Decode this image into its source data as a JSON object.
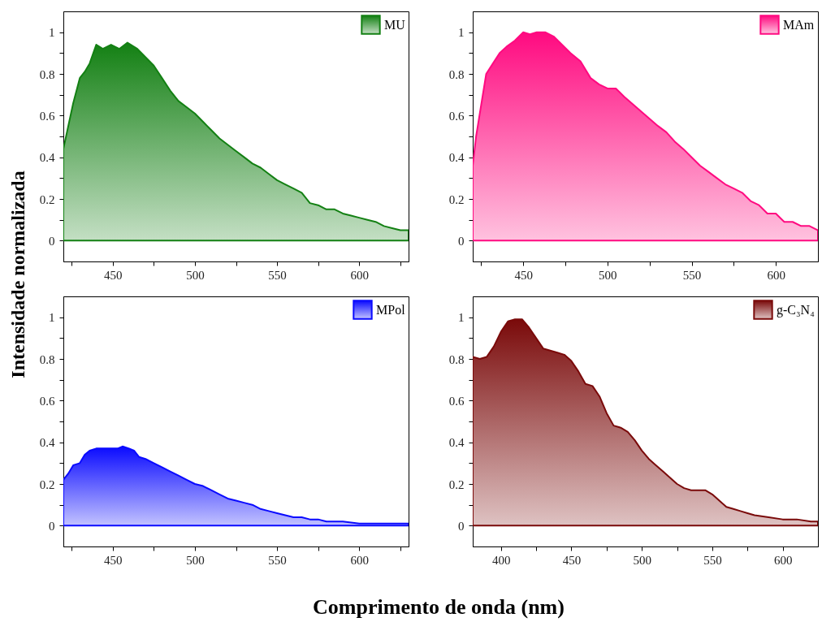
{
  "chart_data": [
    {
      "type": "area",
      "xlabel": "Comprimento de onda (nm)",
      "ylabel": "Intensidade normalizada",
      "x": [
        420,
        423,
        426,
        430,
        433,
        436,
        440,
        444,
        449,
        454,
        459,
        465,
        470,
        475,
        480,
        485,
        490,
        495,
        500,
        505,
        510,
        515,
        520,
        525,
        530,
        535,
        540,
        545,
        550,
        555,
        560,
        565,
        570,
        575,
        580,
        585,
        590,
        595,
        600,
        605,
        610,
        615,
        620,
        625,
        630
      ],
      "series": [
        {
          "name": "MU",
          "color": "#138013",
          "values": [
            0.44,
            0.55,
            0.66,
            0.78,
            0.81,
            0.85,
            0.94,
            0.92,
            0.94,
            0.92,
            0.95,
            0.92,
            0.88,
            0.84,
            0.78,
            0.72,
            0.67,
            0.64,
            0.61,
            0.57,
            0.53,
            0.49,
            0.46,
            0.43,
            0.4,
            0.37,
            0.35,
            0.32,
            0.29,
            0.27,
            0.25,
            0.23,
            0.18,
            0.17,
            0.15,
            0.15,
            0.13,
            0.12,
            0.11,
            0.1,
            0.09,
            0.07,
            0.06,
            0.05,
            0.05
          ]
        }
      ],
      "xlim": [
        420,
        630
      ],
      "xticks": [
        {
          "value": 425,
          "label": null
        },
        450,
        {
          "value": 475,
          "label": null
        },
        500,
        {
          "value": 525,
          "label": null
        },
        550,
        {
          "value": 575,
          "label": null
        },
        600,
        {
          "value": 625,
          "label": null
        }
      ],
      "ylim": [
        -0.1,
        1.1
      ],
      "yticks": [
        0,
        {
          "value": 0.1,
          "label": null
        },
        0.2,
        {
          "value": 0.3,
          "label": null
        },
        0.4,
        {
          "value": 0.5,
          "label": null
        },
        0.6,
        {
          "value": 0.7,
          "label": null
        },
        0.8,
        {
          "value": 0.9,
          "label": null
        },
        1
      ],
      "legend": "top right"
    },
    {
      "type": "area",
      "x": [
        420,
        422,
        425,
        428,
        432,
        436,
        440,
        445,
        450,
        454,
        458,
        463,
        468,
        473,
        478,
        484,
        487,
        490,
        495,
        500,
        505,
        510,
        515,
        520,
        525,
        530,
        535,
        540,
        545,
        550,
        555,
        560,
        565,
        570,
        575,
        580,
        585,
        590,
        595,
        600,
        605,
        610,
        615,
        620,
        625
      ],
      "series": [
        {
          "name": "MAm",
          "color": "#ff0a80",
          "values": [
            0.36,
            0.5,
            0.65,
            0.8,
            0.85,
            0.9,
            0.93,
            0.96,
            1.0,
            0.99,
            1.0,
            1.0,
            0.98,
            0.94,
            0.9,
            0.86,
            0.82,
            0.78,
            0.75,
            0.73,
            0.73,
            0.69,
            0.655,
            0.62,
            0.585,
            0.55,
            0.52,
            0.475,
            0.44,
            0.4,
            0.36,
            0.33,
            0.3,
            0.27,
            0.25,
            0.23,
            0.19,
            0.17,
            0.13,
            0.13,
            0.09,
            0.09,
            0.07,
            0.07,
            0.05
          ]
        }
      ],
      "xlim": [
        420,
        625
      ],
      "xticks": [
        {
          "value": 425,
          "label": null
        },
        450,
        {
          "value": 475,
          "label": null
        },
        500,
        {
          "value": 525,
          "label": null
        },
        550,
        {
          "value": 575,
          "label": null
        },
        600
      ],
      "ylim": [
        -0.1,
        1.1
      ],
      "yticks": [
        0,
        {
          "value": 0.1,
          "label": null
        },
        0.2,
        {
          "value": 0.3,
          "label": null
        },
        0.4,
        {
          "value": 0.5,
          "label": null
        },
        0.6,
        {
          "value": 0.7,
          "label": null
        },
        0.8,
        {
          "value": 0.9,
          "label": null
        },
        1
      ],
      "legend": "top right"
    },
    {
      "type": "area",
      "x": [
        420,
        423,
        426,
        430,
        433,
        436,
        440,
        445,
        450,
        453,
        456,
        460,
        463,
        466,
        470,
        475,
        480,
        485,
        490,
        495,
        500,
        505,
        510,
        515,
        520,
        525,
        530,
        535,
        540,
        545,
        550,
        555,
        560,
        565,
        570,
        575,
        580,
        590,
        600,
        610,
        620,
        630
      ],
      "series": [
        {
          "name": "MPol",
          "color": "#0a0aff",
          "values": [
            0.22,
            0.25,
            0.29,
            0.3,
            0.34,
            0.36,
            0.37,
            0.37,
            0.37,
            0.37,
            0.38,
            0.37,
            0.36,
            0.33,
            0.32,
            0.3,
            0.28,
            0.26,
            0.24,
            0.22,
            0.2,
            0.19,
            0.17,
            0.15,
            0.13,
            0.12,
            0.11,
            0.1,
            0.08,
            0.07,
            0.06,
            0.05,
            0.04,
            0.04,
            0.03,
            0.03,
            0.02,
            0.02,
            0.01,
            0.01,
            0.01,
            0.01
          ]
        }
      ],
      "xlim": [
        420,
        630
      ],
      "xticks": [
        {
          "value": 425,
          "label": null
        },
        450,
        {
          "value": 475,
          "label": null
        },
        500,
        {
          "value": 525,
          "label": null
        },
        550,
        {
          "value": 575,
          "label": null
        },
        600,
        {
          "value": 625,
          "label": null
        }
      ],
      "ylim": [
        -0.1,
        1.1
      ],
      "yticks": [
        0,
        {
          "value": 0.1,
          "label": null
        },
        0.2,
        {
          "value": 0.3,
          "label": null
        },
        0.4,
        {
          "value": 0.5,
          "label": null
        },
        0.6,
        {
          "value": 0.7,
          "label": null
        },
        0.8,
        {
          "value": 0.9,
          "label": null
        },
        1
      ],
      "legend": "top right"
    },
    {
      "type": "area",
      "x": [
        380,
        385,
        390,
        395,
        400,
        405,
        410,
        415,
        420,
        425,
        430,
        435,
        440,
        445,
        450,
        455,
        460,
        465,
        470,
        475,
        480,
        485,
        490,
        495,
        500,
        505,
        510,
        515,
        520,
        525,
        530,
        535,
        540,
        545,
        550,
        555,
        560,
        565,
        570,
        575,
        580,
        590,
        600,
        610,
        620,
        625
      ],
      "series": [
        {
          "name": "g-C₃N₄",
          "color": "#7a0a0a",
          "values": [
            0.81,
            0.8,
            0.81,
            0.86,
            0.93,
            0.98,
            0.99,
            0.99,
            0.95,
            0.9,
            0.85,
            0.84,
            0.83,
            0.82,
            0.79,
            0.74,
            0.68,
            0.67,
            0.62,
            0.54,
            0.48,
            0.47,
            0.45,
            0.41,
            0.36,
            0.32,
            0.29,
            0.26,
            0.23,
            0.2,
            0.18,
            0.17,
            0.17,
            0.17,
            0.15,
            0.12,
            0.09,
            0.08,
            0.07,
            0.06,
            0.05,
            0.04,
            0.03,
            0.03,
            0.02,
            0.02
          ]
        }
      ],
      "xlim": [
        380,
        625
      ],
      "xticks": [
        400,
        {
          "value": 425,
          "label": null
        },
        450,
        {
          "value": 475,
          "label": null
        },
        500,
        {
          "value": 525,
          "label": null
        },
        550,
        {
          "value": 575,
          "label": null
        },
        600
      ],
      "ylim": [
        -0.1,
        1.1
      ],
      "yticks": [
        0,
        {
          "value": 0.1,
          "label": null
        },
        0.2,
        {
          "value": 0.3,
          "label": null
        },
        0.4,
        {
          "value": 0.5,
          "label": null
        },
        0.6,
        {
          "value": 0.7,
          "label": null
        },
        0.8,
        {
          "value": 0.9,
          "label": null
        },
        1
      ],
      "legend": "top right"
    }
  ]
}
